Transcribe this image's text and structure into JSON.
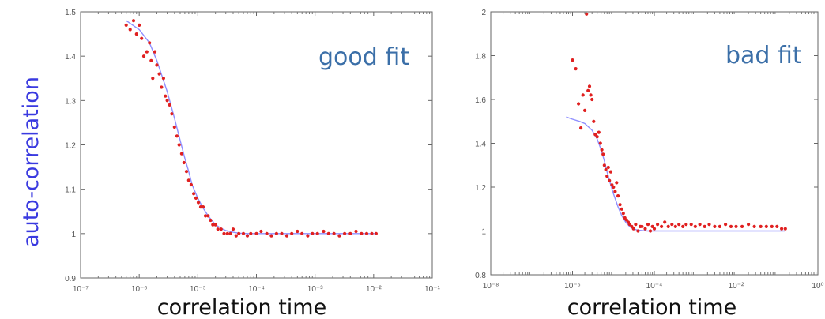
{
  "colors": {
    "points": "#e02020",
    "fit": "#8f8fff",
    "frame": "#666666",
    "ylabel": "#3a3ae0",
    "annotation": "#3b6fa8"
  },
  "figure": {
    "ylabel": "auto-correlation"
  },
  "chart_data": [
    {
      "type": "scatter",
      "annotation": "good fit",
      "xlabel": "correlation time",
      "ylabel": "auto-correlation",
      "xscale": "log",
      "xlim": [
        1e-07,
        0.1
      ],
      "ylim": [
        0.9,
        1.5
      ],
      "x_tick_labels": [
        "10⁻⁷",
        "10⁻⁶",
        "10⁻⁵",
        "10⁻⁴",
        "10⁻³",
        "10⁻²",
        "10⁻¹"
      ],
      "y_tick_labels": [
        "0.9",
        "1",
        "1.1",
        "1.2",
        "1.3",
        "1.4",
        "1.5"
      ],
      "grid": false,
      "series": [
        {
          "kind": "points",
          "x": [
            6e-07,
            7e-07,
            8e-07,
            9e-07,
            1e-06,
            1.1e-06,
            1.2e-06,
            1.35e-06,
            1.5e-06,
            1.6e-06,
            1.7e-06,
            1.85e-06,
            2e-06,
            2.2e-06,
            2.4e-06,
            2.6e-06,
            2.8e-06,
            3e-06,
            3.3e-06,
            3.6e-06,
            4e-06,
            4.4e-06,
            4.8e-06,
            5.3e-06,
            5.8e-06,
            6.4e-06,
            7e-06,
            7.7e-06,
            8.5e-06,
            9.3e-06,
            1.02e-05,
            1.12e-05,
            1.23e-05,
            1.35e-05,
            1.5e-05,
            1.65e-05,
            1.8e-05,
            2e-05,
            2.2e-05,
            2.5e-05,
            2.8e-05,
            3.2e-05,
            3.6e-05,
            4e-05,
            4.5e-05,
            5e-05,
            6e-05,
            7e-05,
            8e-05,
            0.0001,
            0.00012,
            0.00015,
            0.00018,
            0.00022,
            0.00027,
            0.00033,
            0.0004,
            0.0005,
            0.0006,
            0.00075,
            0.0009,
            0.0011,
            0.0014,
            0.0017,
            0.0021,
            0.0026,
            0.0032,
            0.004,
            0.005,
            0.0062,
            0.0076,
            0.0093,
            0.011
          ],
          "y": [
            1.47,
            1.46,
            1.48,
            1.45,
            1.47,
            1.44,
            1.4,
            1.41,
            1.43,
            1.39,
            1.35,
            1.41,
            1.38,
            1.36,
            1.33,
            1.35,
            1.31,
            1.3,
            1.29,
            1.27,
            1.24,
            1.22,
            1.2,
            1.18,
            1.16,
            1.14,
            1.12,
            1.11,
            1.09,
            1.08,
            1.07,
            1.06,
            1.06,
            1.04,
            1.04,
            1.03,
            1.02,
            1.02,
            1.01,
            1.01,
            1.0,
            1.0,
            1.0,
            1.01,
            0.995,
            1.0,
            1.0,
            0.995,
            1.0,
            1.0,
            1.005,
            1.0,
            0.995,
            1.0,
            1.0,
            0.995,
            1.0,
            1.005,
            1.0,
            0.995,
            1.0,
            1.0,
            1.005,
            1.0,
            1.0,
            0.995,
            1.0,
            1.0,
            1.005,
            1.0,
            1.0,
            1.0,
            1.0
          ]
        },
        {
          "kind": "fit",
          "x": [
            6e-07,
            1e-06,
            1.5e-06,
            2e-06,
            3e-06,
            4e-06,
            5e-06,
            6e-06,
            7e-06,
            8e-06,
            1e-05,
            1.2e-05,
            1.5e-05,
            2e-05,
            2.5e-05,
            3e-05,
            4e-05,
            5e-05,
            7e-05,
            0.0001,
            0.001,
            0.011
          ],
          "y": [
            1.48,
            1.46,
            1.43,
            1.39,
            1.32,
            1.26,
            1.21,
            1.17,
            1.14,
            1.11,
            1.08,
            1.06,
            1.04,
            1.02,
            1.012,
            1.007,
            1.003,
            1.001,
            1.0,
            1.0,
            1.0,
            1.0
          ]
        }
      ]
    },
    {
      "type": "scatter",
      "annotation": "bad fit",
      "xlabel": "correlation time",
      "xscale": "log",
      "xlim": [
        1e-08,
        1
      ],
      "ylim": [
        0.8,
        2
      ],
      "x_tick_labels": [
        "10⁻⁸",
        "10⁻⁶",
        "10⁻⁴",
        "10⁻²",
        "10⁰"
      ],
      "y_tick_labels": [
        "0.8",
        "1",
        "1.2",
        "1.4",
        "1.6",
        "1.8",
        "2"
      ],
      "grid": false,
      "series": [
        {
          "kind": "points",
          "x": [
            1e-06,
            1.2e-06,
            1.4e-06,
            1.6e-06,
            1.8e-06,
            2e-06,
            2.2e-06,
            2.4e-06,
            2.6e-06,
            2.8e-06,
            3e-06,
            3.3e-06,
            3.6e-06,
            4e-06,
            4.4e-06,
            4.8e-06,
            5.2e-06,
            5.6e-06,
            6e-06,
            6.5e-06,
            7e-06,
            7.5e-06,
            8e-06,
            8.6e-06,
            9.2e-06,
            1e-05,
            1.1e-05,
            1.2e-05,
            1.3e-05,
            1.45e-05,
            1.6e-05,
            1.75e-05,
            1.9e-05,
            2.1e-05,
            2.3e-05,
            2.5e-05,
            2.8e-05,
            3.1e-05,
            3.5e-05,
            4e-05,
            4.5e-05,
            5e-05,
            6e-05,
            7e-05,
            8e-05,
            9e-05,
            0.0001,
            0.00012,
            0.00015,
            0.00018,
            0.00022,
            0.00027,
            0.00033,
            0.0004,
            0.0005,
            0.0006,
            0.0008,
            0.001,
            0.0013,
            0.0017,
            0.0022,
            0.003,
            0.004,
            0.0055,
            0.0075,
            0.01,
            0.014,
            0.02,
            0.028,
            0.04,
            0.055,
            0.075,
            0.1,
            0.13,
            0.16
          ],
          "y": [
            1.78,
            1.74,
            1.58,
            1.47,
            1.62,
            1.55,
            1.99,
            1.64,
            1.66,
            1.62,
            1.6,
            1.5,
            1.44,
            1.43,
            1.45,
            1.4,
            1.37,
            1.35,
            1.3,
            1.28,
            1.25,
            1.29,
            1.23,
            1.27,
            1.21,
            1.2,
            1.18,
            1.22,
            1.16,
            1.12,
            1.1,
            1.08,
            1.06,
            1.05,
            1.04,
            1.03,
            1.02,
            1.01,
            1.03,
            1.0,
            1.02,
            1.02,
            1.01,
            1.03,
            1.0,
            1.02,
            1.01,
            1.03,
            1.02,
            1.04,
            1.02,
            1.03,
            1.02,
            1.03,
            1.02,
            1.03,
            1.03,
            1.02,
            1.03,
            1.02,
            1.03,
            1.02,
            1.02,
            1.03,
            1.02,
            1.02,
            1.02,
            1.03,
            1.02,
            1.02,
            1.02,
            1.02,
            1.02,
            1.01,
            1.01
          ]
        },
        {
          "kind": "fit",
          "x": [
            7e-07,
            1e-06,
            1.5e-06,
            2e-06,
            3e-06,
            4e-06,
            5e-06,
            6e-06,
            7e-06,
            8e-06,
            1e-05,
            1.3e-05,
            1.6e-05,
            2e-05,
            2.5e-05,
            3e-05,
            4e-05,
            5e-05,
            7e-05,
            0.0001,
            0.001,
            0.01,
            0.16
          ],
          "y": [
            1.52,
            1.51,
            1.5,
            1.49,
            1.46,
            1.42,
            1.37,
            1.32,
            1.27,
            1.23,
            1.17,
            1.11,
            1.07,
            1.04,
            1.02,
            1.01,
            1.004,
            1.002,
            1.0,
            1.0,
            1.0,
            1.0,
            1.0
          ]
        }
      ]
    }
  ]
}
